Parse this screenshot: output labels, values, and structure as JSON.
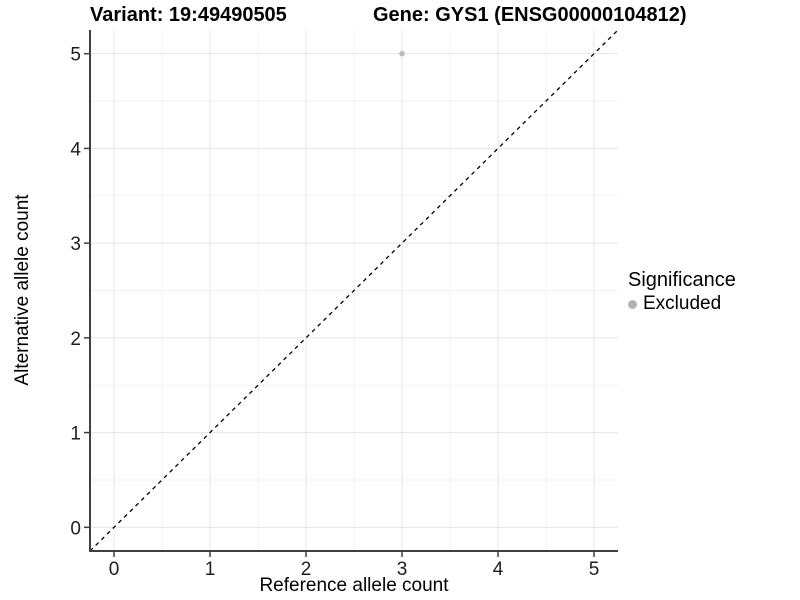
{
  "titles": {
    "left": "Variant: 19:49490505",
    "right": "Gene: GYS1 (ENSG00000104812)"
  },
  "chart_data": {
    "type": "scatter",
    "title_left": "Variant: 19:49490505",
    "title_right": "Gene: GYS1 (ENSG00000104812)",
    "xlabel": "Reference allele count",
    "ylabel": "Alternative allele count",
    "xlim": [
      -0.25,
      5.25
    ],
    "ylim": [
      -0.25,
      5.25
    ],
    "xticks": [
      0,
      1,
      2,
      3,
      4,
      5
    ],
    "yticks": [
      0,
      1,
      2,
      3,
      4,
      5
    ],
    "grid": "major+minor",
    "points": [
      {
        "x": 3,
        "y": 5,
        "series": "Excluded"
      }
    ],
    "series": [
      {
        "name": "Excluded",
        "color": "#bcbcbc"
      }
    ],
    "reference_line": {
      "type": "identity",
      "style": "dashed",
      "color": "#000000"
    },
    "legend": {
      "title": "Significance",
      "position": "right",
      "entries": [
        {
          "label": "Excluded",
          "color": "#b3b3b3"
        }
      ]
    },
    "colors": {
      "grid_major": "#e6e6e6",
      "grid_minor": "#f2f2f2",
      "axis_line": "#3f3f3f",
      "tick_text": "#1f1f1f",
      "panel_bg": "#ffffff"
    }
  }
}
